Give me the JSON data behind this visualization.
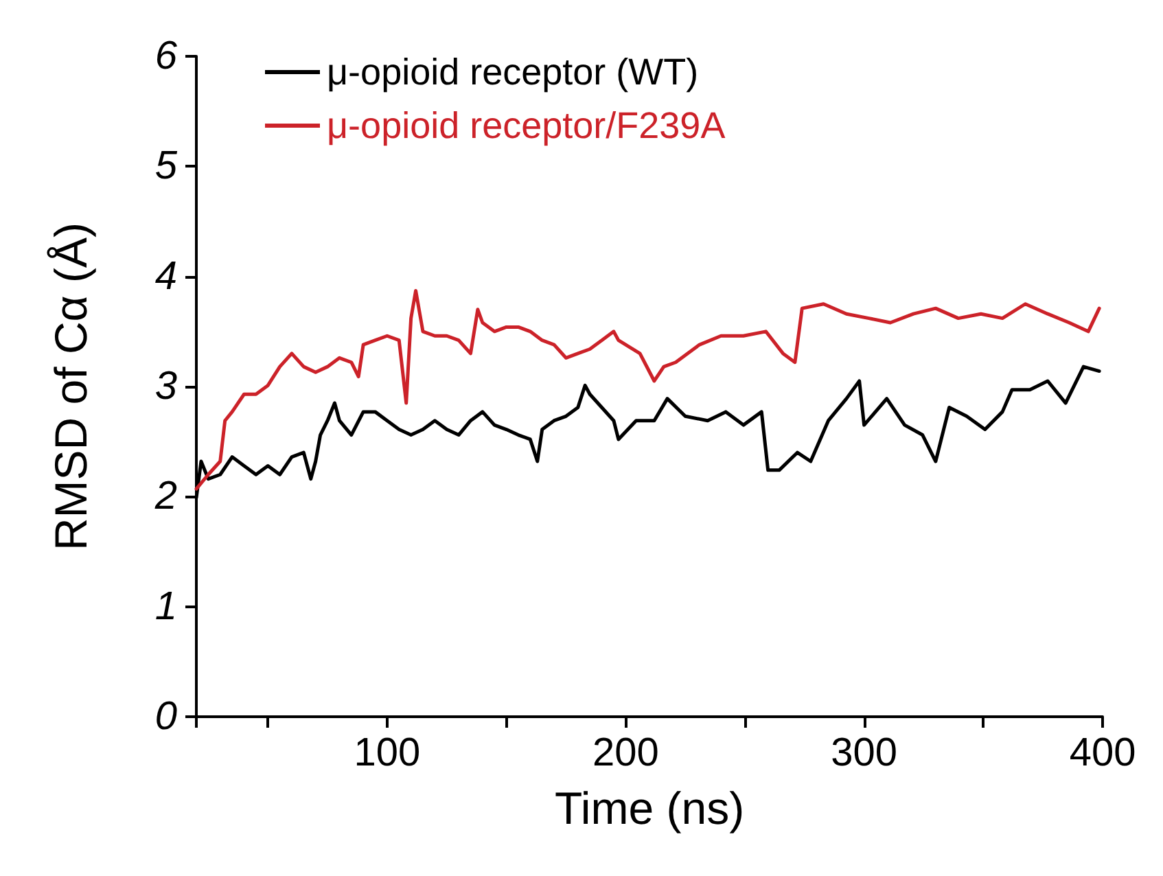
{
  "chart_data": {
    "type": "line",
    "xlabel": "Time (ns)",
    "ylabel": "RMSD of Cα (Å)",
    "xlim": [
      20,
      400
    ],
    "xticks": [
      {
        "value": 20,
        "label": null
      },
      {
        "value": 50,
        "label": null
      },
      100,
      {
        "value": 150,
        "label": null
      },
      200,
      {
        "value": 250,
        "label": null
      },
      300,
      {
        "value": 350,
        "label": null
      },
      400
    ],
    "ylim": [
      0,
      6
    ],
    "yticks": [
      0,
      1,
      2,
      3,
      4,
      5,
      6
    ],
    "grid": false,
    "legend": "top",
    "marker": "none",
    "line_style": "solid",
    "series": [
      {
        "name": "μ-opioid receptor (WT)",
        "color": "#000000",
        "x": [
          20,
          22,
          25,
          30,
          35,
          40,
          45,
          50,
          55,
          60,
          65,
          68,
          70,
          72,
          75,
          78,
          80,
          85,
          90,
          95,
          100,
          105,
          110,
          115,
          120,
          125,
          130,
          135,
          140,
          145,
          150,
          155,
          160,
          163,
          165,
          170,
          175,
          180,
          183,
          185,
          190,
          195,
          197,
          204.4,
          212,
          217.5,
          225,
          234.4,
          242,
          249.4,
          257,
          259.7,
          264.4,
          272,
          277.6,
          285,
          292.6,
          298,
          300,
          309.5,
          317,
          324.5,
          330,
          335.7,
          343,
          350.7,
          358,
          362,
          369.5,
          377,
          384.5,
          392,
          398.6
        ],
        "values": [
          1.99,
          2.32,
          2.16,
          2.2,
          2.36,
          2.28,
          2.2,
          2.28,
          2.2,
          2.36,
          2.4,
          2.16,
          2.32,
          2.56,
          2.69,
          2.85,
          2.69,
          2.56,
          2.77,
          2.77,
          2.69,
          2.61,
          2.56,
          2.61,
          2.69,
          2.61,
          2.56,
          2.69,
          2.77,
          2.65,
          2.61,
          2.56,
          2.52,
          2.32,
          2.61,
          2.69,
          2.73,
          2.81,
          3.01,
          2.93,
          2.81,
          2.69,
          2.52,
          2.69,
          2.69,
          2.89,
          2.73,
          2.69,
          2.77,
          2.65,
          2.77,
          2.24,
          2.24,
          2.4,
          2.32,
          2.69,
          2.89,
          3.05,
          2.65,
          2.89,
          2.65,
          2.56,
          2.32,
          2.81,
          2.73,
          2.61,
          2.77,
          2.97,
          2.97,
          3.05,
          2.85,
          3.18,
          3.14
        ]
      },
      {
        "name": "μ-opioid receptor/F239A",
        "color": "#cc2229",
        "x": [
          20,
          25,
          30,
          32,
          35,
          40,
          45,
          50,
          55,
          60,
          65,
          70,
          75,
          80,
          85,
          88,
          90,
          95,
          100,
          105,
          108,
          110,
          112,
          115,
          120,
          125,
          130,
          135,
          138,
          140,
          145,
          150,
          155,
          160,
          165,
          170,
          175,
          180,
          185,
          190,
          195,
          197,
          206,
          212,
          216,
          221,
          231,
          240,
          249.4,
          258.8,
          266,
          271,
          274,
          283,
          292.6,
          302,
          311,
          320.7,
          330,
          339.5,
          349,
          358,
          367.6,
          377,
          386,
          394,
          398.6
        ],
        "values": [
          2.07,
          2.2,
          2.32,
          2.69,
          2.77,
          2.93,
          2.93,
          3.01,
          3.18,
          3.3,
          3.18,
          3.13,
          3.18,
          3.26,
          3.22,
          3.09,
          3.38,
          3.42,
          3.46,
          3.42,
          2.85,
          3.62,
          3.87,
          3.5,
          3.46,
          3.46,
          3.42,
          3.3,
          3.7,
          3.58,
          3.5,
          3.54,
          3.54,
          3.5,
          3.42,
          3.38,
          3.26,
          3.3,
          3.34,
          3.42,
          3.5,
          3.42,
          3.3,
          3.05,
          3.18,
          3.22,
          3.38,
          3.46,
          3.46,
          3.5,
          3.3,
          3.22,
          3.71,
          3.75,
          3.66,
          3.62,
          3.58,
          3.66,
          3.71,
          3.62,
          3.66,
          3.62,
          3.75,
          3.66,
          3.58,
          3.5,
          3.71
        ]
      }
    ]
  }
}
